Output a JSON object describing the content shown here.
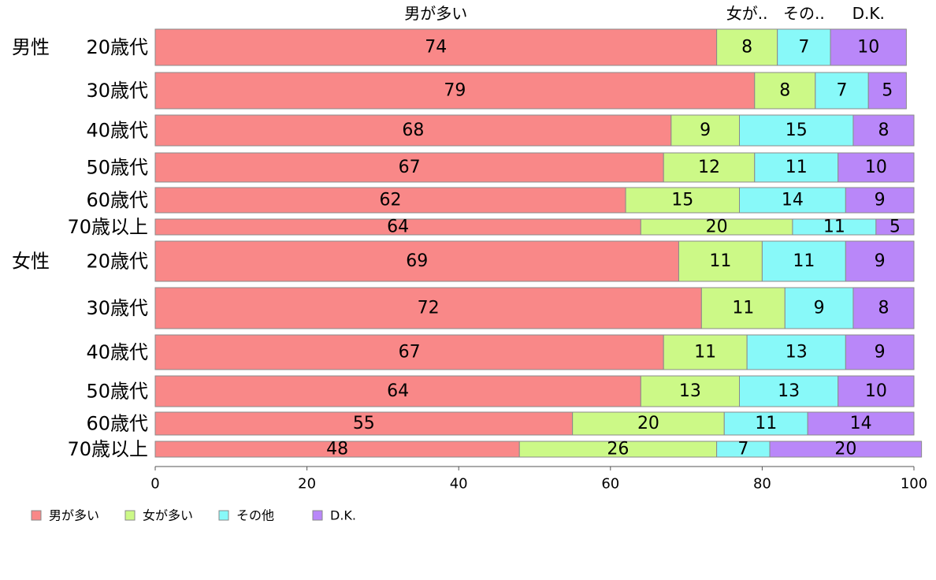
{
  "chart_data": {
    "type": "bar",
    "orientation": "horizontal",
    "stacked": true,
    "header_labels": [
      "男が多い",
      "女が..",
      "その..",
      "D.K."
    ],
    "groups": [
      {
        "label": "男性",
        "rows": [
          0,
          1,
          2,
          3,
          4,
          5
        ]
      },
      {
        "label": "女性",
        "rows": [
          6,
          7,
          8,
          9,
          10,
          11
        ]
      }
    ],
    "categories": [
      "20歳代",
      "30歳代",
      "40歳代",
      "50歳代",
      "60歳代",
      "70歳以上",
      "20歳代",
      "30歳代",
      "40歳代",
      "50歳代",
      "60歳代",
      "70歳以上"
    ],
    "series": [
      {
        "name": "男が多い",
        "color": "#f98888",
        "values": [
          74,
          79,
          68,
          67,
          62,
          64,
          69,
          72,
          67,
          64,
          55,
          48
        ]
      },
      {
        "name": "女が多い",
        "color": "#ccf987",
        "values": [
          8,
          8,
          9,
          12,
          15,
          20,
          11,
          11,
          11,
          13,
          20,
          26
        ]
      },
      {
        "name": "その他",
        "color": "#88f9f9",
        "values": [
          7,
          7,
          15,
          11,
          14,
          11,
          11,
          9,
          13,
          13,
          11,
          7
        ]
      },
      {
        "name": "D.K.",
        "color": "#b987f9",
        "values": [
          10,
          5,
          8,
          10,
          9,
          5,
          9,
          8,
          9,
          10,
          14,
          20
        ]
      }
    ],
    "xlim": [
      0,
      100
    ],
    "xticks": [
      "0",
      "20",
      "40",
      "60",
      "80",
      "100"
    ],
    "legend_position": "bottom-left",
    "grid": false
  }
}
